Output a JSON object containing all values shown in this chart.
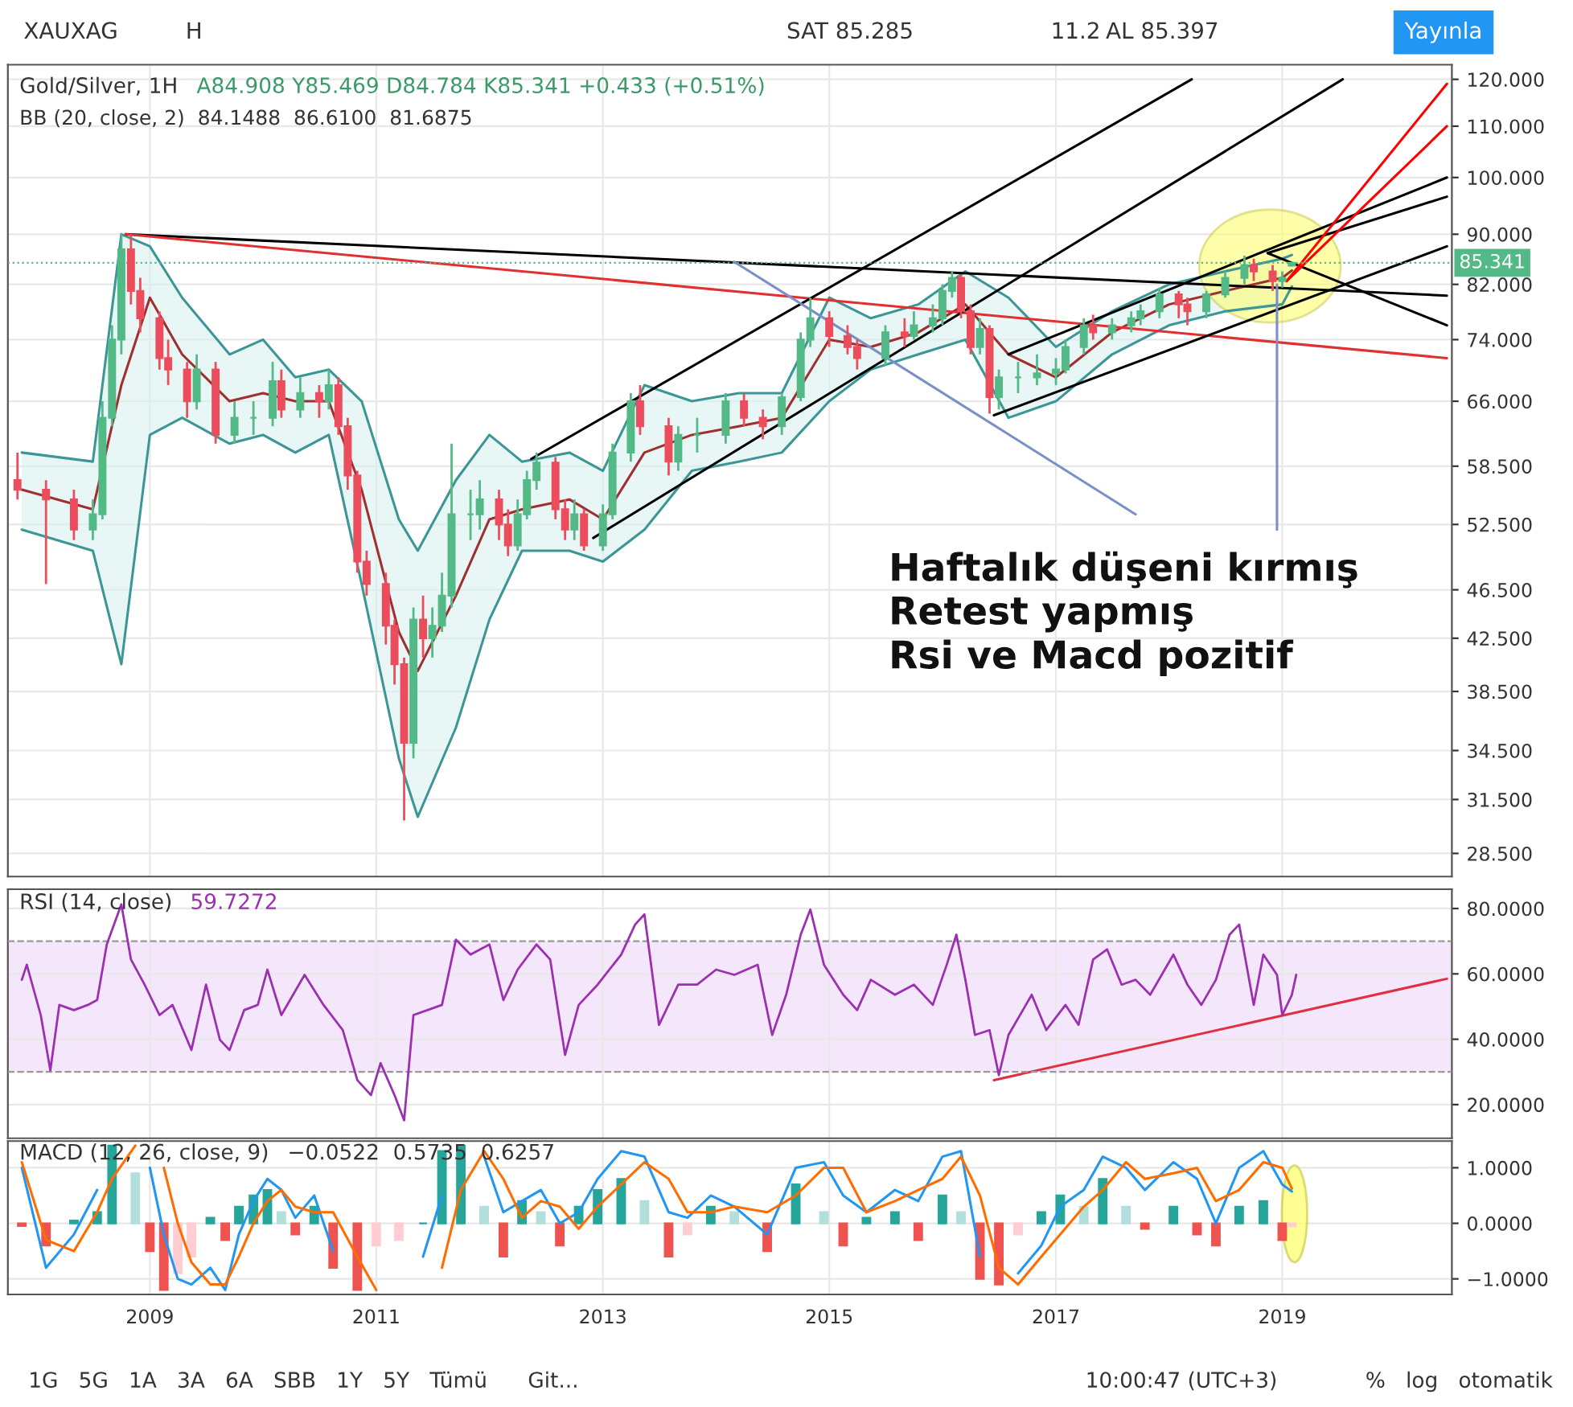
{
  "chart_data": [
    {
      "type": "candlestick",
      "title": "Gold/Silver, 1H",
      "subtitle": "A84.908 Y85.469 D84.784 K85.341 +0.433 (+0.51%)",
      "annotations": [
        "BB (20, close, 2)  84.1488  86.6100  81.6875",
        "Haftalık düşeni kırmış",
        "Retest yapmış",
        "Rsi ve Macd pozitif"
      ],
      "colors": [
        "#eb4d5c",
        "#eb4d5c",
        "#eb4d5c",
        "#53b987",
        "#53b987",
        "#53b987",
        "#53b987",
        "#eb4d5c",
        "#eb4d5c",
        "#eb4d5c",
        "#eb4d5c",
        "#eb4d5c",
        "#53b987",
        "#eb4d5c",
        "#53b987",
        "#53b987",
        "#53b987",
        "#eb4d5c",
        "#53b987",
        "#eb4d5c",
        "#53b987",
        "#eb4d5c",
        "#eb4d5c",
        "#eb4d5c",
        "#eb4d5c",
        "#eb4d5c",
        "#eb4d5c",
        "#eb4d5c",
        "#53b987",
        "#eb4d5c",
        "#53b987",
        "#53b987",
        "#53b987",
        "#53b987",
        "#53b987",
        "#eb4d5c",
        "#eb4d5c",
        "#53b987",
        "#53b987",
        "#53b987",
        "#eb4d5c",
        "#eb4d5c",
        "#53b987",
        "#eb4d5c",
        "#53b987",
        "#53b987",
        "#53b987",
        "#eb4d5c",
        "#eb4d5c",
        "#53b987",
        "#53b987",
        "#53b987",
        "#eb4d5c",
        "#eb4d5c",
        "#53b987",
        "#53b987",
        "#53b987",
        "#eb4d5c",
        "#eb4d5c",
        "#eb4d5c",
        "#53b987",
        "#eb4d5c",
        "#53b987",
        "#53b987",
        "#53b987",
        "#53b987",
        "#eb4d5c",
        "#eb4d5c",
        "#53b987",
        "#eb4d5c",
        "#53b987",
        "#53b987",
        "#53b987",
        "#53b987",
        "#53b987",
        "#53b987",
        "#eb4d5c",
        "#53b987",
        "#53b987",
        "#53b987",
        "#53b987",
        "#eb4d5c",
        "#eb4d5c",
        "#53b987",
        "#53b987",
        "#53b987",
        "#eb4d5c",
        "#eb4d5c",
        "#53b987",
        "#53b987"
      ],
      "x": [
        "2007-11",
        "2008-02",
        "2008-05",
        "2008-07",
        "2008-08",
        "2008-09",
        "2008-10",
        "2008-11",
        "2008-12",
        "2009-02",
        "2009-03",
        "2009-05",
        "2009-06",
        "2009-08",
        "2009-10",
        "2009-12",
        "2010-02",
        "2010-03",
        "2010-05",
        "2010-07",
        "2010-08",
        "2010-09",
        "2010-10",
        "2010-11",
        "2010-12",
        "2011-02",
        "2011-03",
        "2011-04",
        "2011-05",
        "2011-06",
        "2011-07",
        "2011-08",
        "2011-09",
        "2011-11",
        "2011-12",
        "2012-02",
        "2012-03",
        "2012-04",
        "2012-05",
        "2012-06",
        "2012-08",
        "2012-09",
        "2012-10",
        "2012-11",
        "2013-01",
        "2013-02",
        "2013-04",
        "2013-05",
        "2013-08",
        "2013-09",
        "2013-11",
        "2014-02",
        "2014-04",
        "2014-06",
        "2014-08",
        "2014-10",
        "2014-11",
        "2015-01",
        "2015-03",
        "2015-04",
        "2015-07",
        "2015-09",
        "2015-10",
        "2015-12",
        "2016-01",
        "2016-02",
        "2016-03",
        "2016-04",
        "2016-05",
        "2016-06",
        "2016-07",
        "2016-09",
        "2016-11",
        "2017-01",
        "2017-02",
        "2017-04",
        "2017-05",
        "2017-07",
        "2017-09",
        "2017-10",
        "2017-12",
        "2018-02",
        "2018-03",
        "2018-05",
        "2018-07",
        "2018-09",
        "2018-10",
        "2018-12",
        "2019-01",
        "2019-02"
      ],
      "ohlc": [
        [
          57,
          60,
          55,
          56
        ],
        [
          56,
          57,
          47,
          55
        ],
        [
          55,
          56,
          51,
          52
        ],
        [
          52,
          55,
          51,
          53.5
        ],
        [
          53.5,
          66,
          53,
          64
        ],
        [
          64,
          76,
          63,
          74
        ],
        [
          74,
          90,
          72,
          87.5
        ],
        [
          87.5,
          90,
          79,
          81
        ],
        [
          81,
          83,
          75,
          77
        ],
        [
          77,
          78,
          70,
          71.5
        ],
        [
          71.5,
          74,
          68,
          70
        ],
        [
          70,
          71,
          64,
          66
        ],
        [
          66,
          72,
          65,
          70
        ],
        [
          70,
          71,
          61,
          62
        ],
        [
          62,
          66,
          61,
          64
        ],
        [
          64,
          66,
          62,
          64
        ],
        [
          64,
          71,
          63,
          68.5
        ],
        [
          68.5,
          70,
          64,
          65
        ],
        [
          65,
          69,
          64,
          67
        ],
        [
          67,
          68,
          64,
          66
        ],
        [
          66,
          70,
          65,
          68
        ],
        [
          68,
          69,
          62,
          63
        ],
        [
          63,
          64,
          56,
          57.5
        ],
        [
          57.5,
          58,
          48,
          49
        ],
        [
          49,
          50,
          46,
          47
        ],
        [
          47,
          48,
          42,
          43.5
        ],
        [
          43.5,
          44,
          39,
          40.5
        ],
        [
          40.5,
          41,
          30.3,
          35
        ],
        [
          35,
          45,
          34,
          44
        ],
        [
          44,
          46,
          41,
          42.5
        ],
        [
          42.5,
          45,
          41,
          43.5
        ],
        [
          43.5,
          48,
          43,
          46
        ],
        [
          46,
          61,
          45,
          53.5
        ],
        [
          53.5,
          56,
          51,
          53.5
        ],
        [
          53.5,
          57,
          52,
          55
        ],
        [
          55,
          56,
          51,
          52.5
        ],
        [
          52.5,
          54,
          49.5,
          50.5
        ],
        [
          50.5,
          55,
          50,
          53.5
        ],
        [
          53.5,
          58,
          53,
          57
        ],
        [
          57,
          60,
          56,
          58.9
        ],
        [
          58.9,
          59.5,
          53,
          54
        ],
        [
          54,
          55,
          51,
          52
        ],
        [
          52,
          55,
          51,
          53.5
        ],
        [
          53.5,
          54,
          50,
          50.5
        ],
        [
          50.5,
          54.5,
          50,
          53.5
        ],
        [
          53.5,
          61,
          53,
          60
        ],
        [
          60,
          67,
          59,
          66
        ],
        [
          66,
          68,
          62,
          63
        ],
        [
          63,
          64,
          57.5,
          59
        ],
        [
          59,
          63,
          58,
          62
        ],
        [
          62,
          64,
          60,
          62
        ],
        [
          62,
          67,
          61,
          66
        ],
        [
          66,
          67,
          63,
          64
        ],
        [
          64,
          65,
          61.5,
          63
        ],
        [
          63,
          67,
          62,
          66.5
        ],
        [
          66.5,
          75,
          66,
          74
        ],
        [
          74,
          80,
          73,
          77
        ],
        [
          77,
          78,
          73,
          74.5
        ],
        [
          74.5,
          76,
          72,
          73
        ],
        [
          73,
          74,
          70,
          71.5
        ],
        [
          71.5,
          76,
          70.5,
          75
        ],
        [
          75,
          77,
          73,
          74.5
        ],
        [
          74.5,
          78,
          74,
          76
        ],
        [
          76,
          79,
          75,
          77
        ],
        [
          77,
          82,
          76,
          81
        ],
        [
          81,
          84,
          80,
          83
        ],
        [
          83,
          83.5,
          77,
          78
        ],
        [
          78,
          79,
          72,
          73
        ],
        [
          73,
          77,
          72,
          75.5
        ],
        [
          75.5,
          76,
          64.5,
          66.5
        ],
        [
          66.5,
          70,
          65,
          69
        ],
        [
          69,
          71,
          67,
          69
        ],
        [
          69,
          72,
          68,
          69.5
        ],
        [
          69.5,
          71.5,
          68,
          70
        ],
        [
          70,
          74,
          69.5,
          73
        ],
        [
          73,
          77,
          72,
          76
        ],
        [
          76,
          77.5,
          74,
          75
        ],
        [
          75,
          77,
          74,
          76
        ],
        [
          76,
          78,
          75,
          77
        ],
        [
          77,
          79,
          76,
          78
        ],
        [
          78,
          81.5,
          77,
          80.5
        ],
        [
          80.5,
          81,
          77,
          79
        ],
        [
          79,
          80,
          76,
          78
        ],
        [
          78,
          81,
          77,
          80.5
        ],
        [
          80.5,
          84,
          80,
          83
        ],
        [
          83,
          86.5,
          82,
          85
        ],
        [
          85,
          86,
          82.5,
          84
        ],
        [
          84,
          85,
          81,
          82.5
        ],
        [
          82.5,
          84,
          81.5,
          83
        ],
        [
          84.908,
          85.469,
          84.784,
          85.341
        ]
      ],
      "series": [
        {
          "type": "line",
          "color": "#a03030",
          "x": [
            "2007-11-15",
            "2008-07-01",
            "2008-10-01",
            "2009-01-01",
            "2009-04-15",
            "2009-09-15",
            "2010-01-01",
            "2010-04-15",
            "2010-08-01",
            "2010-11-15",
            "2011-03-15",
            "2011-05-15",
            "2011-09-15",
            "2012-01-01",
            "2012-04-15",
            "2012-09-15",
            "2013-01-01",
            "2013-05-15",
            "2013-10-15",
            "2014-03-15",
            "2014-08-01",
            "2015-01-01",
            "2015-05-15",
            "2015-10-15",
            "2016-03-15",
            "2016-08-01",
            "2017-01-01",
            "2017-07-01",
            "2018-01-01",
            "2018-07-01",
            "2019-01-01",
            "2019-02-01"
          ],
          "values": [
            56,
            54,
            68,
            80,
            72,
            66,
            67,
            66,
            66,
            56,
            43,
            40,
            46,
            53,
            54,
            55,
            53,
            60,
            62,
            63,
            64,
            74,
            73,
            75,
            79,
            72,
            69,
            75,
            79,
            81,
            83,
            84.1488
          ],
          "lower": [
            52,
            50,
            40.5,
            62,
            64,
            61,
            62,
            60,
            62,
            47,
            34,
            30.5,
            36,
            44,
            50,
            50,
            49,
            52,
            58,
            59,
            60,
            66,
            70,
            72,
            74,
            64,
            66,
            72,
            76,
            78,
            79,
            81.6875
          ],
          "upper": [
            60,
            59,
            90,
            88,
            80,
            72,
            74,
            69,
            70,
            66,
            53,
            50,
            57,
            62,
            59,
            60,
            58,
            68,
            66,
            67,
            67,
            80,
            77,
            79,
            84,
            80,
            73,
            78,
            82,
            84,
            86,
            86.61
          ]
        },
        {
          "type": "line",
          "color": "#3d9696",
          "x": [
            "2007-11-15",
            "2008-07-01",
            "2008-10-01",
            "2009-01-01",
            "2009-04-15",
            "2009-09-15",
            "2010-01-01",
            "2010-04-15",
            "2010-08-01",
            "2010-11-15",
            "2011-03-15",
            "2011-05-15",
            "2011-09-15",
            "2012-01-01",
            "2012-04-15",
            "2012-09-15",
            "2013-01-01",
            "2013-05-15",
            "2013-10-15",
            "2014-03-15",
            "2014-08-01",
            "2015-01-01",
            "2015-05-15",
            "2015-10-15",
            "2016-03-15",
            "2016-08-01",
            "2017-01-01",
            "2017-07-01",
            "2018-01-01",
            "2018-07-01",
            "2019-01-01",
            "2019-02-01"
          ],
          "values": [
            60,
            59,
            90,
            88,
            80,
            72,
            74,
            69,
            70,
            66,
            53,
            50,
            57,
            62,
            59,
            60,
            58,
            68,
            66,
            67,
            67,
            80,
            77,
            79,
            84,
            80,
            73,
            78,
            82,
            84,
            86,
            86.61
          ]
        },
        {
          "type": "line",
          "color": "#3d9696",
          "x": [
            "2007-11-15",
            "2008-07-01",
            "2008-10-01",
            "2009-01-01",
            "2009-04-15",
            "2009-09-15",
            "2010-01-01",
            "2010-04-15",
            "2010-08-01",
            "2010-11-15",
            "2011-03-15",
            "2011-05-15",
            "2011-09-15",
            "2012-01-01",
            "2012-04-15",
            "2012-09-15",
            "2013-01-01",
            "2013-05-15",
            "2013-10-15",
            "2014-03-15",
            "2014-08-01",
            "2015-01-01",
            "2015-05-15",
            "2015-10-15",
            "2016-03-15",
            "2016-08-01",
            "2017-01-01",
            "2017-07-01",
            "2018-01-01",
            "2018-07-01",
            "2019-01-01",
            "2019-02-01"
          ],
          "values": [
            52,
            50,
            40.5,
            62,
            64,
            61,
            62,
            60,
            62,
            47,
            34,
            30.5,
            36,
            44,
            50,
            50,
            49,
            52,
            58,
            59,
            60,
            66,
            70,
            72,
            74,
            64,
            66,
            72,
            76,
            78,
            79,
            81.6875
          ]
        },
        {
          "type": "line",
          "color": "#000000",
          "x": [
            "2008-10-15",
            "2020-06-15"
          ],
          "values": [
            90,
            80.3
          ]
        },
        {
          "type": "line",
          "color": "#e03030",
          "x": [
            "2008-10-15",
            "2020-06-15"
          ],
          "values": [
            90,
            71.5
          ]
        },
        {
          "type": "line",
          "color": "#000000",
          "x": [
            "2012-05-15",
            "2018-03-15"
          ],
          "values": [
            59.3,
            120
          ]
        },
        {
          "type": "line",
          "color": "#000000",
          "x": [
            "2012-12-01",
            "2019-07-15"
          ],
          "values": [
            51.2,
            120
          ]
        },
        {
          "type": "line",
          "color": "#000000",
          "x": [
            "2016-08-01",
            "2020-06-15"
          ],
          "values": [
            72,
            100
          ]
        },
        {
          "type": "line",
          "color": "#000000",
          "x": [
            "2016-06-15",
            "2020-06-15"
          ],
          "values": [
            64.3,
            88
          ]
        },
        {
          "type": "line",
          "color": "#000000",
          "x": [
            "2018-11-15",
            "2020-06-15"
          ],
          "values": [
            86.9,
            96.5
          ]
        },
        {
          "type": "line",
          "color": "#000000",
          "x": [
            "2018-11-15",
            "2020-06-15"
          ],
          "values": [
            86.9,
            76
          ]
        },
        {
          "type": "line",
          "color": "#ff0000",
          "x": [
            "2019-01-15",
            "2020-06-15"
          ],
          "values": [
            82.5,
            119
          ]
        },
        {
          "type": "line",
          "color": "#ff0000",
          "x": [
            "2019-01-15",
            "2020-06-15"
          ],
          "values": [
            82.5,
            110
          ]
        },
        {
          "type": "line",
          "color": "#7b8fc7",
          "x": [
            "2014-03-01",
            "2017-09-15"
          ],
          "values": [
            85.5,
            53.5
          ]
        },
        {
          "type": "line",
          "color": "#7b8fc7",
          "x": [
            "2018-12-15",
            "2018-12-15"
          ],
          "values": [
            82,
            52
          ]
        }
      ],
      "ref_lines": [
        {
          "axis": "y",
          "value": 85.341,
          "label": "85.341",
          "color": "#53b987",
          "line_style": "dotted"
        }
      ],
      "log": true,
      "grid": true,
      "tick_labels": "y",
      "xlim": [
        "2007-10-01",
        "2020-07-01"
      ],
      "xticks": [
        {
          "value": "2009-01-01",
          "label": null
        },
        {
          "value": "2011-01-01",
          "label": null
        },
        {
          "value": "2013-01-01",
          "label": null
        },
        {
          "value": "2015-01-01",
          "label": null
        },
        {
          "value": "2017-01-01",
          "label": null
        },
        {
          "value": "2019-01-01",
          "label": null
        }
      ],
      "ylim": [
        27.3,
        123.3
      ],
      "yticks": [
        {
          "value": 28.5,
          "label": "28.500"
        },
        {
          "value": 31.5,
          "label": "31.500"
        },
        {
          "value": 34.5,
          "label": "34.500"
        },
        {
          "value": 38.5,
          "label": "38.500"
        },
        {
          "value": 42.5,
          "label": "42.500"
        },
        {
          "value": 46.5,
          "label": "46.500"
        },
        {
          "value": 52.5,
          "label": "52.500"
        },
        {
          "value": 58.5,
          "label": "58.500"
        },
        {
          "value": 66,
          "label": "66.000"
        },
        {
          "value": 74,
          "label": "74.000"
        },
        {
          "value": 82,
          "label": "82.000"
        },
        {
          "value": 90,
          "label": "90.000"
        },
        {
          "value": 100,
          "label": "100.000"
        },
        {
          "value": 110,
          "label": "110.000"
        },
        {
          "value": 120,
          "label": "120.000"
        }
      ]
    },
    {
      "type": "line",
      "title": "RSI (14, close)",
      "subtitle": "59.7272",
      "color": "#9b30b0",
      "x": [
        "2007-11-15",
        "2007-12-01",
        "2008-01-15",
        "2008-02-15",
        "2008-03-15",
        "2008-05-01",
        "2008-06-15",
        "2008-07-15",
        "2008-08-15",
        "2008-10-01",
        "2008-11-01",
        "2008-12-15",
        "2009-02-01",
        "2009-03-15",
        "2009-05-15",
        "2009-07-01",
        "2009-08-15",
        "2009-09-15",
        "2009-11-01",
        "2009-12-15",
        "2010-01-15",
        "2010-03-01",
        "2010-05-15",
        "2010-07-15",
        "2010-09-15",
        "2010-11-01",
        "2010-12-15",
        "2011-01-15",
        "2011-03-01",
        "2011-04-01",
        "2011-05-01",
        "2011-06-15",
        "2011-08-01",
        "2011-09-15",
        "2011-11-01",
        "2012-01-01",
        "2012-02-15",
        "2012-04-01",
        "2012-06-01",
        "2012-07-15",
        "2012-09-01",
        "2012-10-15",
        "2012-12-15",
        "2013-03-01",
        "2013-04-15",
        "2013-05-15",
        "2013-07-01",
        "2013-09-01",
        "2013-11-01",
        "2014-01-01",
        "2014-03-01",
        "2014-05-15",
        "2014-07-01",
        "2014-08-15",
        "2014-10-01",
        "2014-11-01",
        "2014-12-15",
        "2015-02-15",
        "2015-04-01",
        "2015-05-15",
        "2015-08-01",
        "2015-10-01",
        "2015-12-01",
        "2016-01-15",
        "2016-02-15",
        "2016-03-15",
        "2016-04-15",
        "2016-06-01",
        "2016-07-01",
        "2016-08-01",
        "2016-10-15",
        "2016-12-01",
        "2017-02-01",
        "2017-03-15",
        "2017-05-01",
        "2017-06-15",
        "2017-08-01",
        "2017-09-15",
        "2017-11-01",
        "2018-01-15",
        "2018-03-01",
        "2018-04-15",
        "2018-06-01",
        "2018-07-15",
        "2018-08-15",
        "2018-10-01",
        "2018-11-01",
        "2018-12-15",
        "2019-01-01",
        "2019-02-01",
        "2019-02-15"
      ],
      "values": [
        58.2,
        62.8,
        47.4,
        30.5,
        50.5,
        48.9,
        50.5,
        52,
        69,
        81.3,
        64.4,
        56.7,
        47.4,
        50.5,
        36.7,
        56.7,
        39.8,
        36.7,
        48.9,
        50.5,
        61.3,
        47.4,
        59.7,
        50.5,
        42.8,
        27.5,
        22.9,
        32.7,
        22.9,
        15.2,
        47.4,
        48.9,
        50.5,
        70.5,
        65.9,
        69,
        52,
        61.3,
        69,
        64.4,
        35.2,
        50.5,
        56.7,
        65.9,
        75.1,
        78.2,
        44.4,
        56.7,
        56.7,
        61.3,
        59.7,
        62.8,
        41.3,
        53.6,
        72,
        79.7,
        62.8,
        53.6,
        48.9,
        58.2,
        53.6,
        56.7,
        50.5,
        62.8,
        72,
        58.2,
        41.3,
        42.8,
        29,
        41.3,
        53.6,
        42.8,
        50.5,
        44.4,
        64.4,
        67.5,
        56.7,
        58.2,
        53.6,
        65.9,
        56.7,
        50.5,
        58.2,
        72,
        75.1,
        50.5,
        65.9,
        59.7,
        47.4,
        53.6,
        59.7272
      ],
      "series": [
        {
          "type": "line",
          "color": "#e03040",
          "x": [
            "2016-06-15",
            "2020-06-15"
          ],
          "values": [
            27.5,
            58.5
          ]
        }
      ],
      "bands": [
        {
          "axis": "y",
          "from": 30,
          "to": 70,
          "color": "#f0dcfa"
        }
      ],
      "ref_lines": [
        {
          "axis": "y",
          "value": 30,
          "color": "#999999",
          "line_style": "dashed"
        },
        {
          "axis": "y",
          "value": 70,
          "color": "#999999",
          "line_style": "dashed"
        }
      ],
      "grid": true,
      "tick_labels": "y",
      "xlim": [
        "2007-10-01",
        "2020-07-01"
      ],
      "xticks": [
        {
          "value": "2009-01-01",
          "label": null
        },
        {
          "value": "2011-01-01",
          "label": null
        },
        {
          "value": "2013-01-01",
          "label": null
        },
        {
          "value": "2015-01-01",
          "label": null
        },
        {
          "value": "2017-01-01",
          "label": null
        },
        {
          "value": "2019-01-01",
          "label": null
        }
      ],
      "ylim": [
        9.7,
        85.9
      ],
      "yticks": [
        {
          "value": 20,
          "label": "20.0000"
        },
        {
          "value": 40,
          "label": "40.0000"
        },
        {
          "value": 60,
          "label": "60.0000"
        },
        {
          "value": 80,
          "label": "80.0000"
        }
      ]
    },
    {
      "type": "bar",
      "title": "MACD (12, 26, close, 9)",
      "subtitle": "−0.0522  0.5735  0.6257",
      "x": [
        "2007-11-15",
        "2008-02-01",
        "2008-05-01",
        "2008-07-15",
        "2008-09-01",
        "2008-11-15",
        "2009-01-01",
        "2009-02-15",
        "2009-04-01",
        "2009-05-15",
        "2009-07-15",
        "2009-09-01",
        "2009-10-15",
        "2009-12-01",
        "2010-01-15",
        "2010-03-01",
        "2010-04-15",
        "2010-06-15",
        "2010-08-15",
        "2010-11-01",
        "2011-01-01",
        "2011-03-15",
        "2011-06-01",
        "2011-08-01",
        "2011-10-01",
        "2011-12-15",
        "2012-02-15",
        "2012-04-15",
        "2012-06-15",
        "2012-08-15",
        "2012-10-15",
        "2012-12-15",
        "2013-03-01",
        "2013-05-15",
        "2013-08-01",
        "2013-10-01",
        "2013-12-15",
        "2014-03-01",
        "2014-06-15",
        "2014-09-15",
        "2014-12-15",
        "2015-02-15",
        "2015-05-01",
        "2015-08-01",
        "2015-10-15",
        "2016-01-01",
        "2016-03-01",
        "2016-05-01",
        "2016-07-01",
        "2016-09-01",
        "2016-11-15",
        "2017-01-15",
        "2017-04-01",
        "2017-06-01",
        "2017-08-15",
        "2017-10-15",
        "2018-01-15",
        "2018-04-01",
        "2018-06-01",
        "2018-08-15",
        "2018-11-01",
        "2019-01-01",
        "2019-02-01"
      ],
      "values": [
        -0.05,
        -0.4,
        0.05,
        0.2,
        1.4,
        0.9,
        -0.5,
        -1.2,
        -0.9,
        -0.6,
        0.1,
        -0.3,
        0.3,
        0.5,
        0.6,
        0.2,
        -0.2,
        0.3,
        -0.8,
        -1.2,
        -0.4,
        -0.3,
        0.0,
        1.3,
        1.4,
        0.3,
        -0.6,
        0.4,
        0.2,
        -0.4,
        0.3,
        0.6,
        0.8,
        0.4,
        -0.6,
        -0.2,
        0.3,
        0.2,
        -0.5,
        0.7,
        0.2,
        -0.4,
        0.1,
        0.2,
        -0.3,
        0.5,
        0.2,
        -1.0,
        -1.1,
        -0.2,
        0.2,
        0.5,
        0.3,
        0.8,
        0.3,
        -0.1,
        0.3,
        -0.2,
        -0.4,
        0.3,
        0.4,
        -0.3,
        -0.0522
      ],
      "colors": [
        "#ef5350",
        "#ef5350",
        "#26a69a",
        "#26a69a",
        "#26a69a",
        "#b2dfdb",
        "#ef5350",
        "#ef5350",
        "#ffcdd2",
        "#ffcdd2",
        "#26a69a",
        "#ef5350",
        "#26a69a",
        "#26a69a",
        "#26a69a",
        "#b2dfdb",
        "#ef5350",
        "#26a69a",
        "#ef5350",
        "#ef5350",
        "#ffcdd2",
        "#ffcdd2",
        "#26a69a",
        "#26a69a",
        "#26a69a",
        "#b2dfdb",
        "#ef5350",
        "#26a69a",
        "#b2dfdb",
        "#ef5350",
        "#26a69a",
        "#26a69a",
        "#26a69a",
        "#b2dfdb",
        "#ef5350",
        "#ffcdd2",
        "#26a69a",
        "#b2dfdb",
        "#ef5350",
        "#26a69a",
        "#b2dfdb",
        "#ef5350",
        "#26a69a",
        "#26a69a",
        "#ef5350",
        "#26a69a",
        "#b2dfdb",
        "#ef5350",
        "#ef5350",
        "#ffcdd2",
        "#26a69a",
        "#26a69a",
        "#b2dfdb",
        "#26a69a",
        "#b2dfdb",
        "#ef5350",
        "#26a69a",
        "#ef5350",
        "#ef5350",
        "#26a69a",
        "#26a69a",
        "#ef5350",
        "#ffcdd2"
      ],
      "series": [
        {
          "type": "line",
          "color": "#2196f3",
          "values": [
            1.0,
            -0.8,
            -0.2,
            0.6,
            null,
            null,
            1.0,
            -0.2,
            -1.0,
            -1.1,
            -0.8,
            -1.2,
            -0.2,
            0.4,
            0.8,
            0.6,
            0.1,
            0.5,
            -0.5,
            null,
            null,
            null,
            -0.6,
            0.5,
            null,
            1.2,
            0.2,
            0.4,
            0.6,
            0.0,
            0.2,
            0.8,
            1.3,
            1.2,
            0.2,
            0.1,
            0.5,
            0.3,
            -0.2,
            1.0,
            1.1,
            0.5,
            0.2,
            0.6,
            0.4,
            1.2,
            1.3,
            -0.6,
            null,
            -0.9,
            -0.4,
            0.3,
            0.6,
            1.2,
            1.0,
            0.6,
            1.1,
            0.8,
            0.0,
            1.0,
            1.3,
            0.7,
            0.5735
          ]
        },
        {
          "type": "line",
          "color": "#ff6d00",
          "values": [
            1.1,
            -0.3,
            -0.5,
            0.2,
            0.8,
            1.4,
            null,
            1.0,
            0.0,
            -0.7,
            -1.1,
            -1.1,
            -0.6,
            0.0,
            0.4,
            0.6,
            0.3,
            0.2,
            0.2,
            -0.6,
            -1.2,
            null,
            null,
            -0.8,
            0.6,
            1.3,
            0.8,
            0.1,
            0.4,
            0.3,
            -0.1,
            0.3,
            0.7,
            1.1,
            0.8,
            0.2,
            0.2,
            0.3,
            0.2,
            0.5,
            1.0,
            1.0,
            0.2,
            0.4,
            0.6,
            0.8,
            1.2,
            0.5,
            -0.8,
            -1.1,
            -0.6,
            -0.2,
            0.3,
            0.6,
            1.1,
            0.8,
            0.9,
            1.0,
            0.4,
            0.6,
            1.1,
            1.0,
            0.6257
          ]
        }
      ],
      "grid": true,
      "xlim": [
        "2007-10-01",
        "2020-07-01"
      ],
      "xticks": [
        {
          "value": "2009-01-01",
          "label": "2009"
        },
        {
          "value": "2011-01-01",
          "label": "2011"
        },
        {
          "value": "2013-01-01",
          "label": "2013"
        },
        {
          "value": "2015-01-01",
          "label": "2015"
        },
        {
          "value": "2017-01-01",
          "label": "2017"
        },
        {
          "value": "2019-01-01",
          "label": "2019"
        }
      ],
      "ylim": [
        -1.28,
        1.48
      ],
      "yticks": [
        {
          "value": -1,
          "label": "−1.0000"
        },
        {
          "value": 0,
          "label": "0.0000"
        },
        {
          "value": 1,
          "label": "1.0000"
        }
      ]
    },
    {
      "type": "other",
      "annotations": [
        "XAUXAG",
        "H",
        "SAT 85.285",
        "11.2",
        "AL 85.397",
        "Yayınla"
      ]
    },
    {
      "type": "other",
      "annotations": [
        "1G   5G   1A   3A   6A   SBB   1Y   5Y   Tümü      Git...",
        "10:00:47 (UTC+3)",
        "%   log   otomatik"
      ]
    }
  ]
}
